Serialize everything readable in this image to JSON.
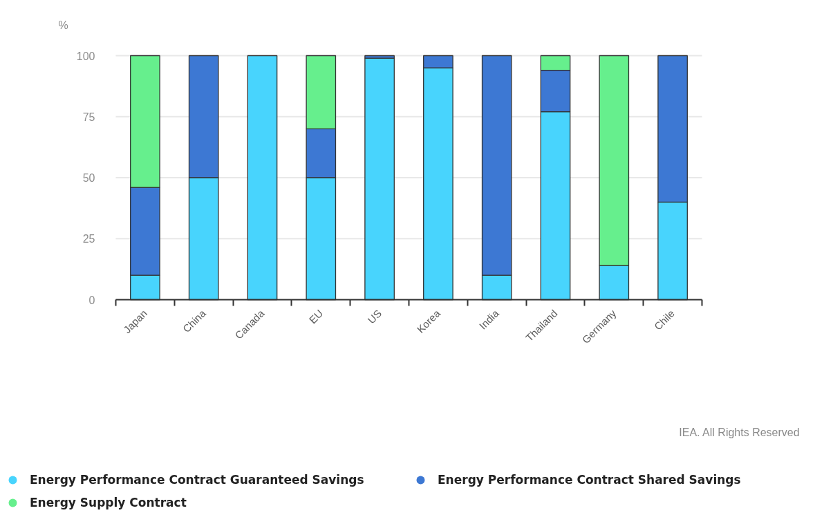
{
  "chart_data": {
    "type": "bar",
    "stacked": true,
    "ylabel": "%",
    "categories": [
      "Japan",
      "China",
      "Canada",
      "EU",
      "US",
      "Korea",
      "India",
      "Thailand",
      "Germany",
      "Chile"
    ],
    "series": [
      {
        "name": "Energy Performance Contract Guaranteed Savings",
        "color": "#48d4fd",
        "values": [
          10,
          50,
          100,
          50,
          99,
          95,
          10,
          77,
          14,
          40
        ]
      },
      {
        "name": "Energy Performance Contract Shared Savings",
        "color": "#3d78d3",
        "values": [
          36,
          50,
          null,
          20,
          1,
          5,
          90,
          17,
          null,
          60
        ]
      },
      {
        "name": "Energy Supply Contract",
        "color": "#66ef8d",
        "values": [
          54,
          null,
          null,
          30,
          null,
          null,
          null,
          6,
          86,
          null
        ]
      }
    ],
    "ylim": [
      0,
      100
    ],
    "yticks": [
      0,
      25,
      50,
      75,
      100
    ],
    "grid": "y",
    "legend": "bottom",
    "annotations": [
      "IEA. All Rights Reserved"
    ]
  }
}
